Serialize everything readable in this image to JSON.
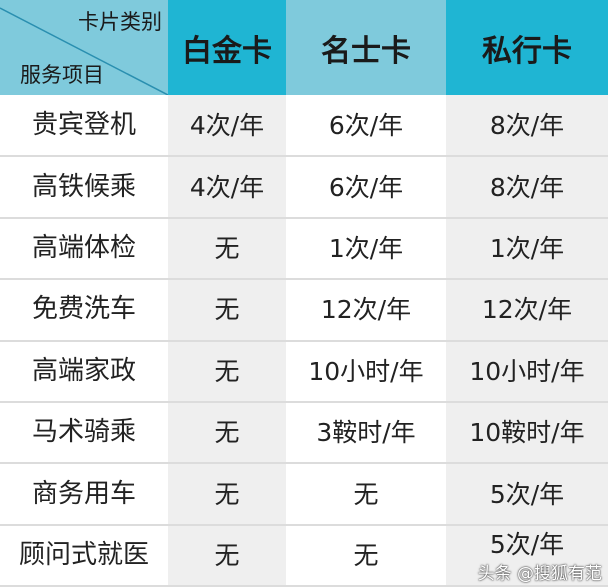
{
  "header": {
    "corner_top": "卡片类别",
    "corner_bottom": "服务项目",
    "columns": [
      "白金卡",
      "名士卡",
      "私行卡"
    ]
  },
  "rows": [
    {
      "service": "贵宾登机",
      "values": [
        "4次/年",
        "6次/年",
        "8次/年"
      ]
    },
    {
      "service": "高铁候乘",
      "values": [
        "4次/年",
        "6次/年",
        "8次/年"
      ]
    },
    {
      "service": "高端体检",
      "values": [
        "无",
        "1次/年",
        "1次/年"
      ]
    },
    {
      "service": "免费洗车",
      "values": [
        "无",
        "12次/年",
        "12次/年"
      ]
    },
    {
      "service": "高端家政",
      "values": [
        "无",
        "10小时/年",
        "10小时/年"
      ]
    },
    {
      "service": "马术骑乘",
      "values": [
        "无",
        "3鞍时/年",
        "10鞍时/年"
      ]
    },
    {
      "service": "商务用车",
      "values": [
        "无",
        "无",
        "5次/年"
      ]
    },
    {
      "service": "顾问式就医",
      "values": [
        "无",
        "无",
        "5次/年"
      ]
    }
  ],
  "watermark": "头条 @搜狐有范",
  "colors": {
    "header_dark": "#1fb5d3",
    "header_light": "#7fcadc",
    "alt_cell": "#efefef"
  }
}
